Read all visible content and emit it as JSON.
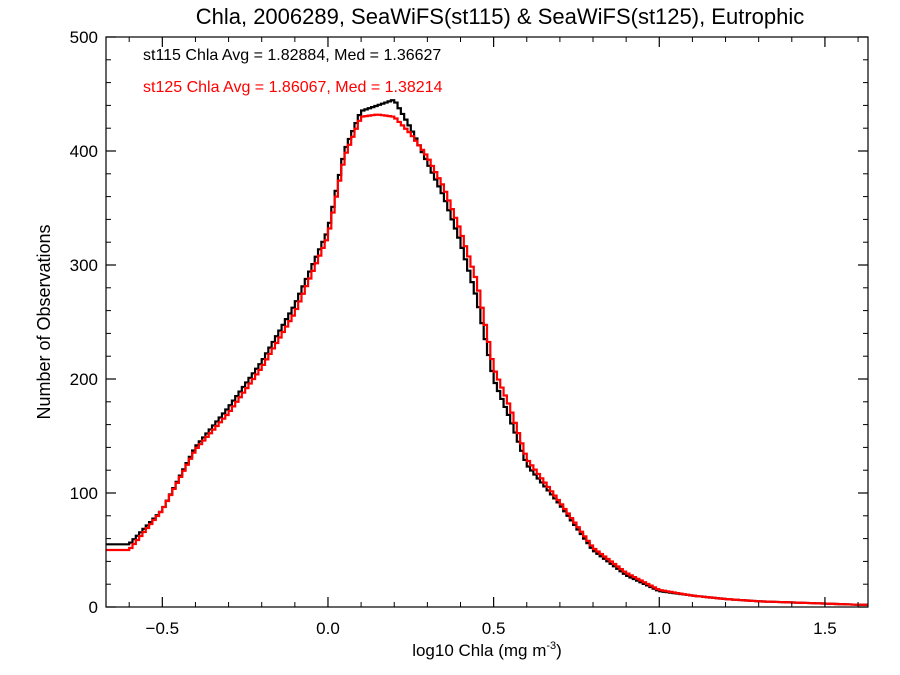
{
  "chart_data": {
    "type": "histogram-step",
    "title": "Chla, 2006289, SeaWiFS(st115) & SeaWiFS(st125), Eutrophic",
    "xlabel_main": "log10 Chla (mg m",
    "xlabel_sup": "-3",
    "xlabel_close": ")",
    "ylabel": "Number of Observations",
    "xlim": [
      -0.67,
      1.63
    ],
    "ylim": [
      0,
      500
    ],
    "xticks": [
      -0.5,
      0.0,
      0.5,
      1.0,
      1.5
    ],
    "xtick_labels": [
      "−0.5",
      "0.0",
      "0.5",
      "1.0",
      "1.5"
    ],
    "yticks": [
      0,
      100,
      200,
      300,
      400,
      500
    ],
    "ytick_labels": [
      "0",
      "100",
      "200",
      "300",
      "400",
      "500"
    ],
    "bin_width": 0.01,
    "annotations": [
      {
        "text": "st115 Chla Avg = 1.82884, Med = 1.36627",
        "color": "#000000"
      },
      {
        "text": "st125 Chla Avg = 1.86067, Med = 1.38214",
        "color": "#ff0000"
      }
    ],
    "series": [
      {
        "color": "#000000",
        "x": [
          -0.6,
          -0.5,
          -0.4,
          -0.3,
          -0.2,
          -0.1,
          0.0,
          0.05,
          0.1,
          0.15,
          0.2,
          0.25,
          0.3,
          0.35,
          0.4,
          0.45,
          0.5,
          0.55,
          0.6,
          0.7,
          0.8,
          0.9,
          1.0,
          1.1,
          1.2,
          1.3,
          1.4,
          1.5,
          1.6
        ],
        "y": [
          55,
          85,
          140,
          175,
          215,
          265,
          330,
          400,
          435,
          440,
          445,
          420,
          390,
          360,
          320,
          270,
          200,
          165,
          125,
          90,
          50,
          28,
          14,
          10,
          7,
          5,
          4,
          3,
          2
        ]
      },
      {
        "color": "#ff0000",
        "x": [
          -0.6,
          -0.5,
          -0.4,
          -0.3,
          -0.2,
          -0.1,
          0.0,
          0.05,
          0.1,
          0.15,
          0.2,
          0.25,
          0.3,
          0.35,
          0.4,
          0.45,
          0.5,
          0.55,
          0.6,
          0.7,
          0.8,
          0.9,
          1.0,
          1.1,
          1.2,
          1.3,
          1.4,
          1.5,
          1.6
        ],
        "y": [
          50,
          85,
          138,
          170,
          210,
          258,
          325,
          395,
          430,
          432,
          430,
          415,
          395,
          368,
          330,
          285,
          210,
          175,
          130,
          92,
          52,
          30,
          15,
          10,
          7,
          5,
          4,
          3,
          2
        ]
      }
    ]
  }
}
